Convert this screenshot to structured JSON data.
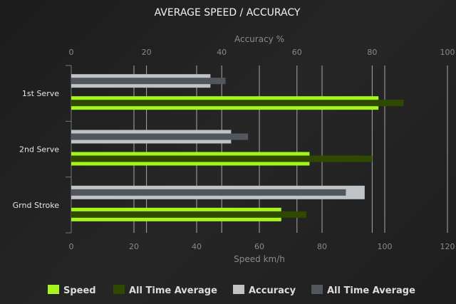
{
  "chart_data": {
    "type": "bar",
    "orientation": "horizontal",
    "title": "AVERAGE SPEED / ACCURACY",
    "categories": [
      "1st Serve",
      "2nd Serve",
      "Grnd Stroke"
    ],
    "x_axis_bottom": {
      "label": "Speed km/h",
      "range": [
        0,
        120
      ],
      "ticks": [
        0,
        20,
        40,
        60,
        80,
        100,
        120
      ]
    },
    "x_axis_top": {
      "label": "Accuracy %",
      "range": [
        0,
        100
      ],
      "ticks": [
        0,
        20,
        40,
        60,
        80,
        100
      ]
    },
    "grid": true,
    "legend_position": "bottom",
    "series": [
      {
        "name": "Speed",
        "axis": "bottom",
        "color": "#a6f51c",
        "values": [
          98,
          76,
          67
        ]
      },
      {
        "name": "All Time Average",
        "axis": "bottom",
        "color": "#2f4a00",
        "values": [
          106,
          96,
          75
        ]
      },
      {
        "name": "Accuracy",
        "axis": "top",
        "color": "#bfc3c5",
        "values": [
          37,
          42.5,
          78
        ]
      },
      {
        "name": "All Time Average",
        "axis": "top",
        "color": "#52575e",
        "values": [
          41,
          47,
          73
        ]
      }
    ]
  }
}
